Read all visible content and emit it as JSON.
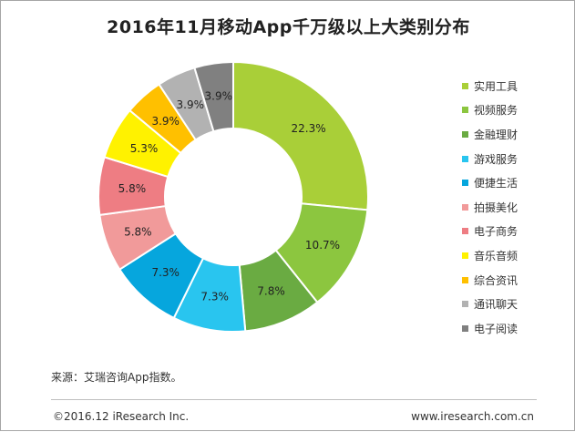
{
  "chart_data": {
    "type": "pie",
    "variant": "donut",
    "title": "2016年11月移动App千万级以上大类别分布",
    "unit": "%",
    "series": [
      {
        "name": "实用工具",
        "value": 22.3,
        "label": "22.3%",
        "color": "#a9cf38"
      },
      {
        "name": "视频服务",
        "value": 10.7,
        "label": "10.7%",
        "color": "#8cc63f"
      },
      {
        "name": "金融理财",
        "value": 7.8,
        "label": "7.8%",
        "color": "#6aab42"
      },
      {
        "name": "游戏服务",
        "value": 7.3,
        "label": "7.3%",
        "color": "#29c5ef"
      },
      {
        "name": "便捷生活",
        "value": 7.3,
        "label": "7.3%",
        "color": "#06a6dd"
      },
      {
        "name": "拍摄美化",
        "value": 5.8,
        "label": "5.8%",
        "color": "#f19a9a"
      },
      {
        "name": "电子商务",
        "value": 5.8,
        "label": "5.8%",
        "color": "#ee7d83"
      },
      {
        "name": "音乐音频",
        "value": 5.3,
        "label": "5.3%",
        "color": "#fff200"
      },
      {
        "name": "综合资讯",
        "value": 3.9,
        "label": "3.9%",
        "color": "#ffc000"
      },
      {
        "name": "通讯聊天",
        "value": 3.9,
        "label": "3.9%",
        "color": "#b2b2b2"
      },
      {
        "name": "电子阅读",
        "value": 3.9,
        "label": "3.9%",
        "color": "#808080"
      }
    ],
    "legend_position": "right"
  },
  "source_note": "来源：艾瑞咨询App指数。",
  "copyright": "©2016.12 iResearch Inc.",
  "website": "www.iresearch.com.cn"
}
